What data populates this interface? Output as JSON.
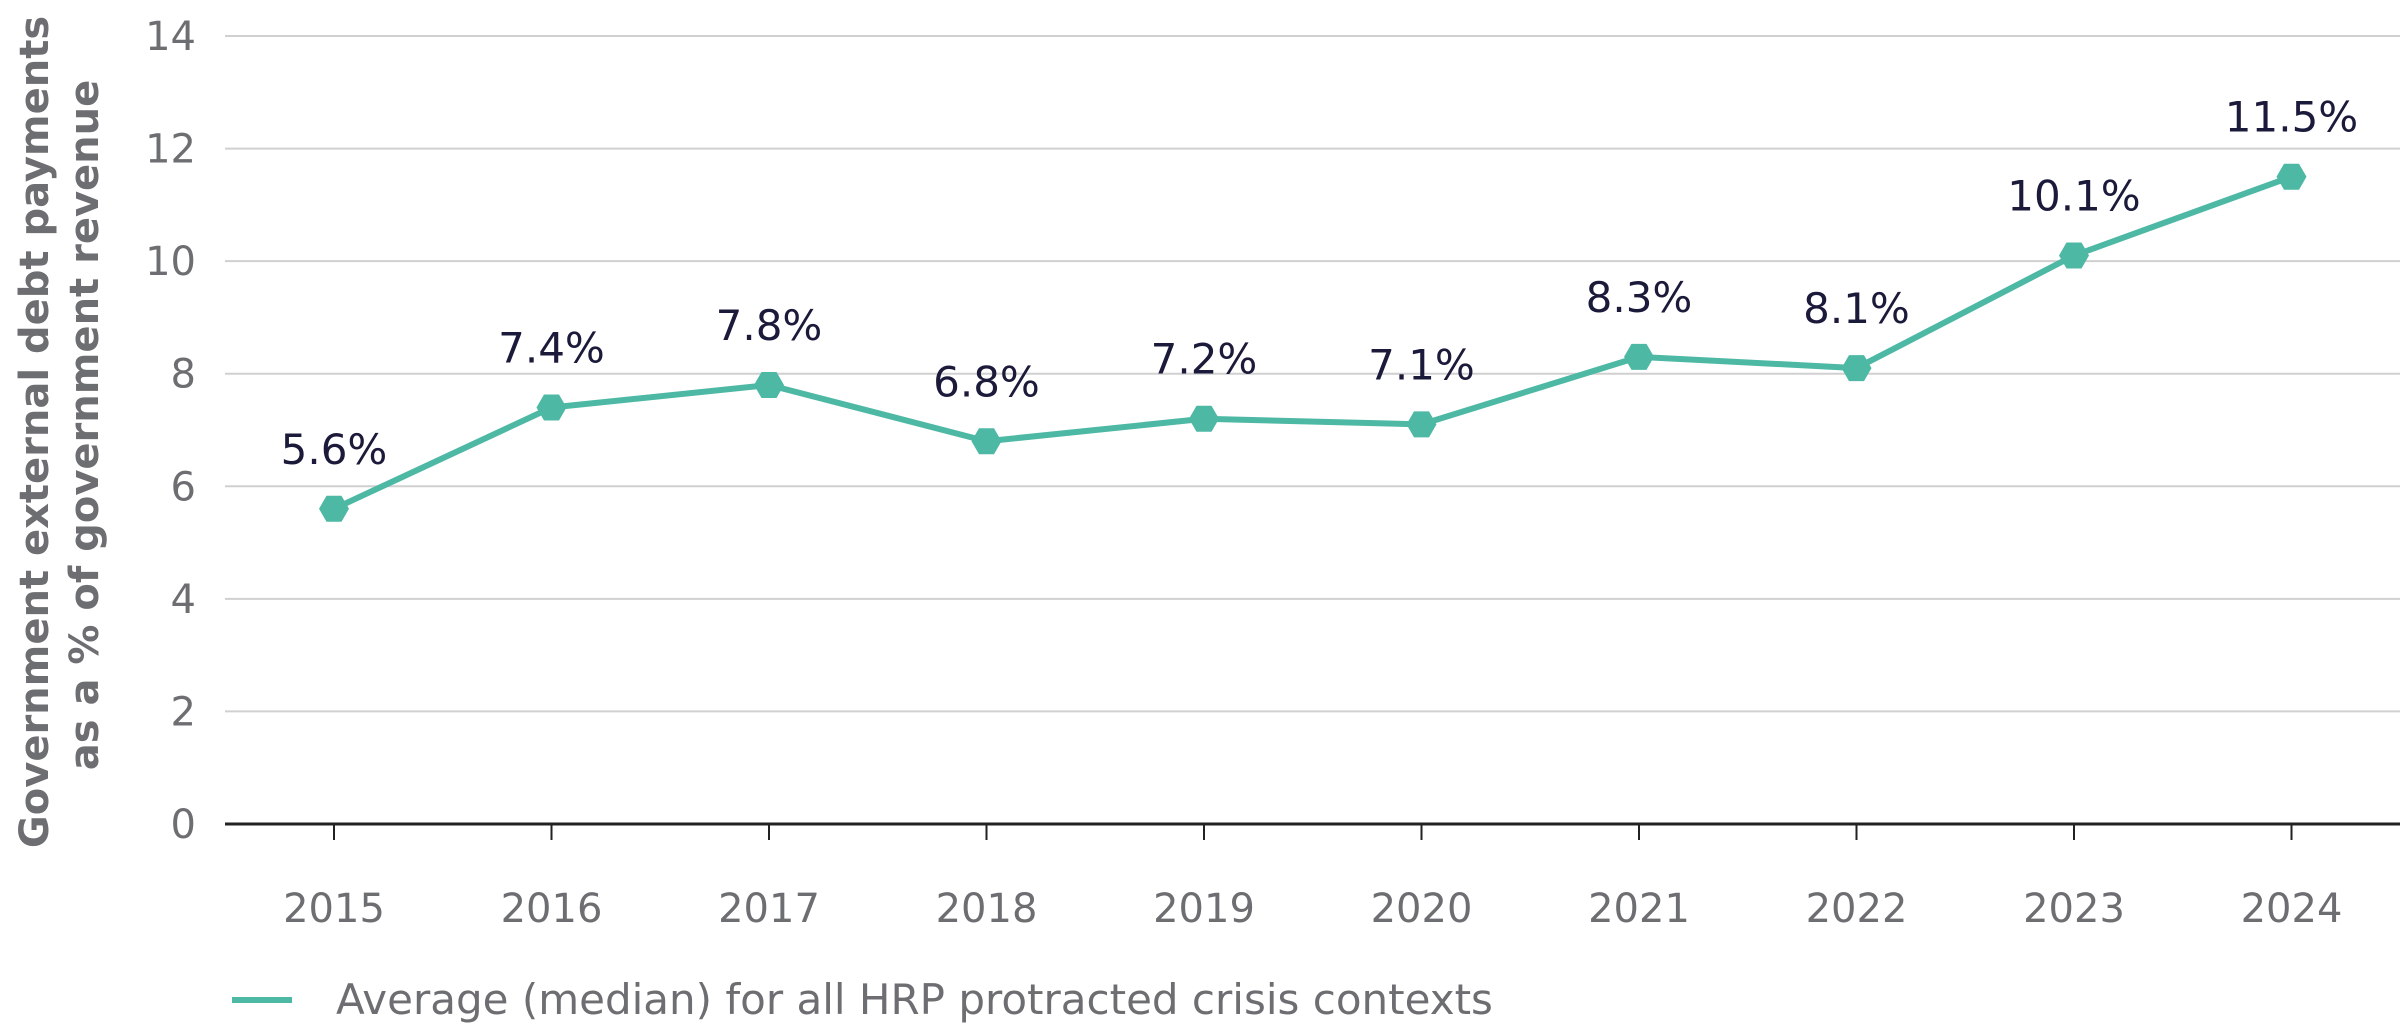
{
  "chart_data": {
    "type": "line",
    "title": "",
    "xlabel": "",
    "ylabel_lines": [
      "Government external debt payments",
      "as a % of government revenue"
    ],
    "categories": [
      "2015",
      "2016",
      "2017",
      "2018",
      "2019",
      "2020",
      "2021",
      "2022",
      "2023",
      "2024"
    ],
    "series": [
      {
        "name": "Average (median) for all HRP protracted crisis contexts",
        "values": [
          5.6,
          7.4,
          7.8,
          6.8,
          7.2,
          7.1,
          8.3,
          8.1,
          10.1,
          11.5
        ],
        "labels": [
          "5.6%",
          "7.4%",
          "7.8%",
          "6.8%",
          "7.2%",
          "7.1%",
          "8.3%",
          "8.1%",
          "10.1%",
          "11.5%"
        ],
        "color": "#4db8a4"
      }
    ],
    "ylim": [
      0,
      14
    ],
    "yticks": [
      0,
      2,
      4,
      6,
      8,
      10,
      12,
      14
    ],
    "grid": true,
    "legend_position": "bottom-left",
    "gridline_color": "#d0d0d0",
    "axis_color": "#222222"
  }
}
